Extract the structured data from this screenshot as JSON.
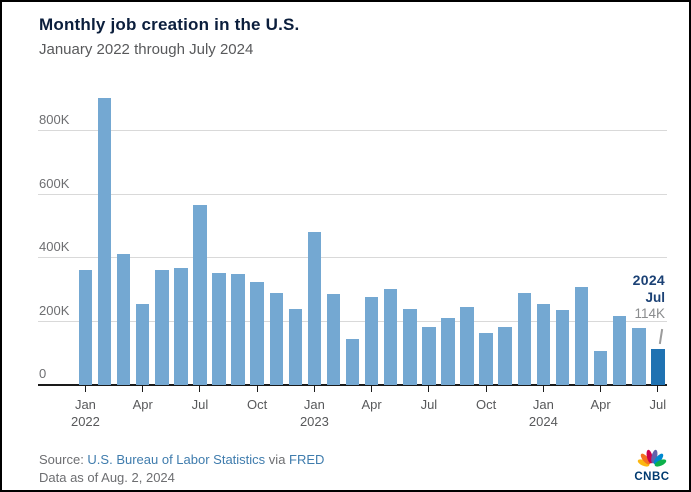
{
  "header": {
    "title": "Monthly job creation in the U.S.",
    "subtitle": "January 2022 through July 2024"
  },
  "chart_data": {
    "type": "bar",
    "title": "Monthly job creation in the U.S.",
    "subtitle": "January 2022 through July 2024",
    "unit": "jobs (thousands)",
    "x": [
      "Jan 2022",
      "Feb 2022",
      "Mar 2022",
      "Apr 2022",
      "May 2022",
      "Jun 2022",
      "Jul 2022",
      "Aug 2022",
      "Sep 2022",
      "Oct 2022",
      "Nov 2022",
      "Dec 2022",
      "Jan 2023",
      "Feb 2023",
      "Mar 2023",
      "Apr 2023",
      "May 2023",
      "Jun 2023",
      "Jul 2023",
      "Aug 2023",
      "Sep 2023",
      "Oct 2023",
      "Nov 2023",
      "Dec 2023",
      "Jan 2024",
      "Feb 2024",
      "Mar 2024",
      "Apr 2024",
      "May 2024",
      "Jun 2024",
      "Jul 2024"
    ],
    "values_thousands": [
      364,
      904,
      414,
      254,
      364,
      370,
      568,
      352,
      350,
      324,
      290,
      239,
      482,
      287,
      146,
      278,
      303,
      240,
      184,
      210,
      246,
      165,
      182,
      290,
      256,
      236,
      310,
      108,
      218,
      179,
      114
    ],
    "ylim_thousands": [
      0,
      940
    ],
    "yticks_thousands": [
      0,
      200,
      400,
      600,
      800
    ],
    "ytick_labels": [
      "0",
      "200K",
      "400K",
      "600K",
      "800K"
    ],
    "xtick_indices": [
      0,
      3,
      6,
      9,
      12,
      15,
      18,
      21,
      24,
      27,
      30
    ],
    "xtick_labels": [
      "Jan",
      "Apr",
      "Jul",
      "Oct",
      "Jan",
      "Apr",
      "Jul",
      "Oct",
      "Jan",
      "Apr",
      "Jul"
    ],
    "xtick_year_labels": [
      "2022",
      "",
      "",
      "",
      "2023",
      "",
      "",
      "",
      "2024",
      "",
      ""
    ],
    "grid": "horizontal",
    "legend": "none",
    "bar_color": "#74a8d2",
    "highlight_color": "#1f72b2",
    "highlight_index": 30,
    "annotation": {
      "year": "2024",
      "month": "Jul",
      "value": "114K"
    }
  },
  "footer": {
    "source_prefix": "Source: ",
    "source_link_1": "U.S. Bureau of Labor Statistics",
    "source_middle": " via ",
    "source_link_2": "FRED",
    "data_as_of": "Data as of Aug. 2, 2024",
    "logo_text": "CNBC"
  }
}
